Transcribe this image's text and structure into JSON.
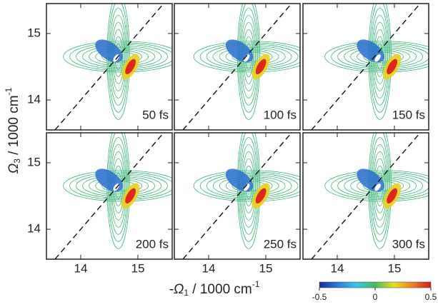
{
  "chart_data": {
    "type": "contour",
    "xlim": [
      13.4,
      15.6
    ],
    "ylim": [
      13.55,
      15.45
    ],
    "xticks": [
      14,
      15
    ],
    "yticks": [
      14,
      15
    ],
    "diagonal": true,
    "x_label": {
      "symbol": "-Ω",
      "subscript": "1",
      "unit": " / 1000 cm",
      "superscript": "-1"
    },
    "y_label": {
      "symbol": "Ω",
      "subscript": "3",
      "unit": " / 1000 cm",
      "superscript": "-1"
    },
    "panels": [
      {
        "label": "50 fs"
      },
      {
        "label": "100 fs"
      },
      {
        "label": "150 fs"
      },
      {
        "label": "200 fs"
      },
      {
        "label": "250 fs"
      },
      {
        "label": "300 fs"
      }
    ],
    "colorbar": {
      "lim": [
        -0.5,
        0.5
      ],
      "ticks": [
        -0.5,
        0,
        0.5
      ],
      "colors": [
        "#1a2a9c",
        "#2a7de0",
        "#33c8e8",
        "#3fbf5a",
        "#e8e020",
        "#f08020",
        "#d81818"
      ]
    }
  }
}
